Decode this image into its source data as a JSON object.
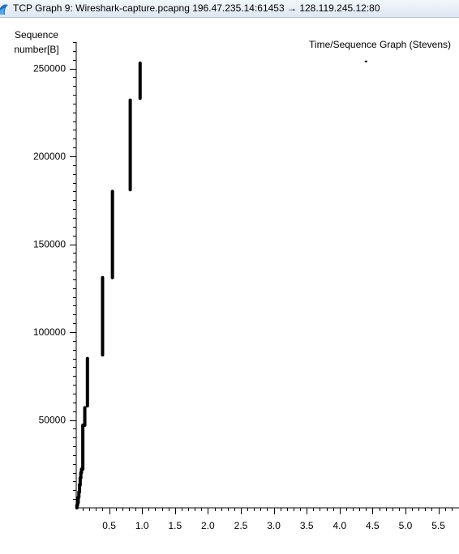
{
  "window": {
    "title": "TCP Graph 9: Wireshark-capture.pcapng 196.47.235.14:61453 → 128.119.245.12:80",
    "icon": "wireshark-fin-icon"
  },
  "chart_data": {
    "type": "scatter",
    "title": "Time/Sequence Graph (Stevens)",
    "ylabel_lines": [
      "Sequence",
      "number[B]"
    ],
    "xlabel": "",
    "xlim": [
      0,
      5.75
    ],
    "ylim": [
      0,
      265000
    ],
    "x_ticks": [
      0.5,
      1.0,
      1.5,
      2.0,
      2.5,
      3.0,
      3.5,
      4.0,
      4.5,
      5.0,
      5.5
    ],
    "x_tick_labels": [
      "0.5",
      "1.0",
      "1.5",
      "2.0",
      "2.5",
      "3.0",
      "3.5",
      "4.0",
      "4.5",
      "5.0",
      "5.5"
    ],
    "y_ticks": [
      50000,
      100000,
      150000,
      200000,
      250000
    ],
    "y_tick_labels": [
      "50000",
      "100000",
      "150000",
      "200000",
      "250000"
    ],
    "grid": false,
    "point_color": "#000000",
    "segments": [
      {
        "x": 0.01,
        "y_start": 0,
        "y_end": 1500
      },
      {
        "x": 0.02,
        "y_start": 1500,
        "y_end": 3000
      },
      {
        "x": 0.03,
        "y_start": 3000,
        "y_end": 6000
      },
      {
        "x": 0.04,
        "y_start": 6000,
        "y_end": 9000
      },
      {
        "x": 0.05,
        "y_start": 9000,
        "y_end": 13000
      },
      {
        "x": 0.06,
        "y_start": 13000,
        "y_end": 17000
      },
      {
        "x": 0.07,
        "y_start": 17000,
        "y_end": 20000
      },
      {
        "x": 0.08,
        "y_start": 20000,
        "y_end": 22000
      },
      {
        "x": 0.1,
        "y_start": 22000,
        "y_end": 47000
      },
      {
        "x": 0.13,
        "y_start": 47000,
        "y_end": 57000
      },
      {
        "x": 0.17,
        "y_start": 58000,
        "y_end": 85000
      },
      {
        "x": 0.4,
        "y_start": 87000,
        "y_end": 131000
      },
      {
        "x": 0.55,
        "y_start": 131000,
        "y_end": 180000
      },
      {
        "x": 0.82,
        "y_start": 181000,
        "y_end": 232000
      },
      {
        "x": 0.97,
        "y_start": 233000,
        "y_end": 253000
      }
    ],
    "stray_point": {
      "x": 4.4,
      "y": 254000
    }
  }
}
